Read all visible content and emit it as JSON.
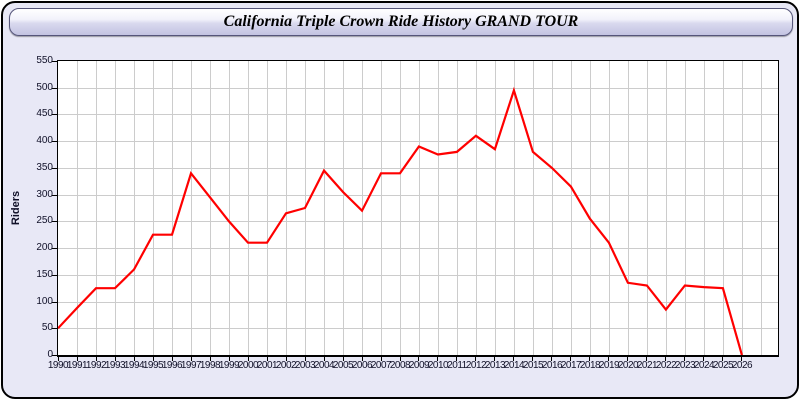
{
  "window": {
    "title": "California Triple Crown Ride History GRAND TOUR"
  },
  "chart_data": {
    "type": "line",
    "title": "California Triple Crown Ride History GRAND TOUR",
    "xlabel": "",
    "ylabel": "Riders",
    "x": [
      1990,
      1991,
      1992,
      1993,
      1994,
      1995,
      1996,
      1997,
      1998,
      1999,
      2000,
      2001,
      2002,
      2003,
      2004,
      2005,
      2006,
      2007,
      2008,
      2009,
      2010,
      2011,
      2012,
      2013,
      2014,
      2015,
      2016,
      2017,
      2018,
      2019,
      2020,
      2021,
      2022,
      2023,
      2024,
      2025,
      2026
    ],
    "series": [
      {
        "name": "Riders",
        "color": "#ff0000",
        "values": [
          50,
          88,
          125,
          125,
          160,
          225,
          225,
          340,
          295,
          250,
          210,
          210,
          265,
          275,
          345,
          305,
          270,
          340,
          340,
          390,
          375,
          380,
          410,
          385,
          495,
          380,
          350,
          315,
          255,
          210,
          135,
          130,
          85,
          130,
          127,
          125,
          0
        ]
      }
    ],
    "xlim": [
      1990,
      2027.9
    ],
    "ylim": [
      0,
      550
    ],
    "y_ticks": [
      0,
      50,
      100,
      150,
      200,
      250,
      300,
      350,
      400,
      450,
      500,
      550
    ],
    "grid": true,
    "legend_position": "none"
  },
  "colors": {
    "accent": "#ff0000",
    "grid": "#cccccc",
    "plot_background": "#ffffff",
    "page_background": "#e8e8f6",
    "tick_label": "#101028"
  }
}
